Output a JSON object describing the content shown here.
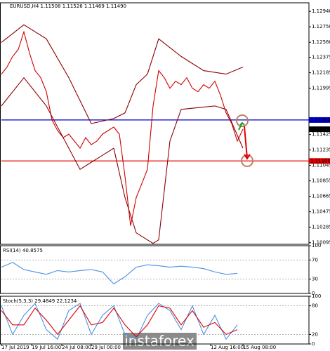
{
  "header": "EURUSD,H4  1.11508 1.11526 1.11469 1.11490",
  "watermark": "instaforex",
  "chart_data": [
    {
      "type": "line",
      "xlim": [
        0,
        54.75
      ],
      "ylim": [
        1.10075,
        1.13045
      ],
      "yticks": [
        {
          "value": 1.1294,
          "label": "1.12940"
        },
        {
          "value": 1.1275,
          "label": "1.12750"
        },
        {
          "value": 1.1256,
          "label": "1.12560"
        },
        {
          "value": 1.12375,
          "label": "1.12375"
        },
        {
          "value": 1.12185,
          "label": "1.12185"
        },
        {
          "value": 1.11995,
          "label": "1.11995"
        },
        {
          "value": 1.11425,
          "label": "1.11425"
        },
        {
          "value": 1.11235,
          "label": "1.11235"
        },
        {
          "value": 1.11045,
          "label": "1.11045"
        },
        {
          "value": 1.10855,
          "label": "1.10855"
        },
        {
          "value": 1.10665,
          "label": "1.10665"
        },
        {
          "value": 1.10475,
          "label": "1.10475"
        },
        {
          "value": 1.10285,
          "label": "1.10285"
        },
        {
          "value": 1.10095,
          "label": "1.10095"
        }
      ],
      "series": [
        {
          "color": "#d00000",
          "x": [
            0,
            1,
            2,
            3,
            4,
            5,
            6,
            7,
            8,
            9,
            10,
            11,
            12,
            13,
            14,
            15,
            16,
            17,
            18,
            19,
            20,
            21,
            22,
            23,
            24,
            25,
            26,
            27,
            28,
            29,
            30,
            31,
            32,
            33,
            34,
            35,
            36,
            37,
            38,
            39,
            40,
            41,
            42,
            43
          ],
          "values": [
            1.12168,
            1.12255,
            1.12385,
            1.12471,
            1.12688,
            1.12428,
            1.12211,
            1.12124,
            1.11951,
            1.11604,
            1.11474,
            1.11387,
            1.1143,
            1.11344,
            1.11257,
            1.11387,
            1.113,
            1.11344,
            1.1143,
            1.11474,
            1.11517,
            1.1143,
            1.1091,
            1.10302,
            1.1065,
            1.10823,
            1.10997,
            1.11777,
            1.12211,
            1.12124,
            1.11994,
            1.12081,
            1.12038,
            1.12124,
            1.11994,
            1.11951,
            1.12038,
            1.11994,
            1.12081,
            1.11908,
            1.11691,
            1.1156,
            1.11344,
            1.1149
          ]
        },
        {
          "color": "#8b0000",
          "x": [
            0,
            4,
            8,
            12,
            16,
            20,
            22,
            24,
            26,
            28,
            32,
            36,
            40,
            43
          ],
          "values": [
            1.12558,
            1.12775,
            1.12602,
            1.12124,
            1.1156,
            1.11621,
            1.11691,
            1.12038,
            1.12168,
            1.12602,
            1.12385,
            1.12211,
            1.12168,
            1.12255
          ]
        },
        {
          "color": "#8b0000",
          "x": [
            0,
            4,
            8,
            12,
            14,
            18,
            20,
            22,
            24,
            27,
            28,
            30,
            32,
            38,
            40,
            43
          ],
          "values": [
            1.11777,
            1.12124,
            1.11777,
            1.11257,
            1.10997,
            1.1117,
            1.11257,
            1.1065,
            1.10216,
            1.10086,
            1.10129,
            1.11344,
            1.11734,
            1.11777,
            1.11734,
            1.11257
          ]
        }
      ],
      "hlines": [
        {
          "value": 1.11604,
          "label": "1.11604",
          "color": "#0000c8"
        },
        {
          "value": 1.111,
          "label": "1.11100",
          "color": "#e00000"
        }
      ],
      "last_price": {
        "value": 1.1149,
        "label": "1.11490"
      }
    },
    {
      "type": "line",
      "title": "RSI(14) 40.8575",
      "xlim": [
        0,
        54.75
      ],
      "ylim": [
        0,
        100
      ],
      "grid": true,
      "yticks": [
        0,
        30,
        70,
        100
      ],
      "series": [
        {
          "color": "#4a90e2",
          "x": [
            0,
            2,
            4,
            6,
            8,
            10,
            12,
            14,
            16,
            18,
            20,
            22,
            24,
            26,
            28,
            30,
            32,
            34,
            36,
            38,
            40,
            42
          ],
          "values": [
            55,
            65,
            50,
            45,
            40,
            48,
            45,
            48,
            50,
            45,
            20,
            35,
            55,
            60,
            58,
            55,
            57,
            55,
            52,
            45,
            40,
            42
          ]
        }
      ]
    },
    {
      "type": "line",
      "title": "Stoch(5,3,3) 29.4849 22.1234",
      "xlim": [
        0,
        54.75
      ],
      "ylim": [
        0,
        100
      ],
      "grid": true,
      "yticks": [
        0,
        20,
        80,
        100
      ],
      "series": [
        {
          "color": "#4a90e2",
          "x": [
            0,
            2,
            4,
            6,
            8,
            10,
            12,
            14,
            16,
            18,
            20,
            22,
            24,
            26,
            28,
            30,
            32,
            34,
            36,
            38,
            40,
            42
          ],
          "values": [
            80,
            20,
            60,
            85,
            30,
            10,
            70,
            85,
            20,
            60,
            80,
            20,
            10,
            60,
            85,
            70,
            30,
            80,
            20,
            60,
            10,
            40
          ]
        },
        {
          "color": "#e00000",
          "x": [
            0,
            2,
            4,
            6,
            8,
            10,
            12,
            14,
            16,
            18,
            20,
            22,
            24,
            26,
            28,
            30,
            32,
            34,
            36,
            38,
            40,
            42
          ],
          "values": [
            70,
            40,
            40,
            75,
            50,
            20,
            50,
            80,
            40,
            45,
            75,
            40,
            15,
            40,
            80,
            75,
            40,
            70,
            35,
            45,
            20,
            30
          ]
        }
      ],
      "xticks": [
        {
          "value": 0,
          "label": "17 Jul 2019"
        },
        {
          "value": 5.4,
          "label": "19 Jul 16:00"
        },
        {
          "value": 10.75,
          "label": "24 Jul 08:00"
        },
        {
          "value": 16,
          "label": "29 Jul 00:00"
        },
        {
          "value": 37.25,
          "label": "12 Aug 16:00"
        },
        {
          "value": 43,
          "label": "15 Aug 08:00"
        }
      ]
    }
  ]
}
